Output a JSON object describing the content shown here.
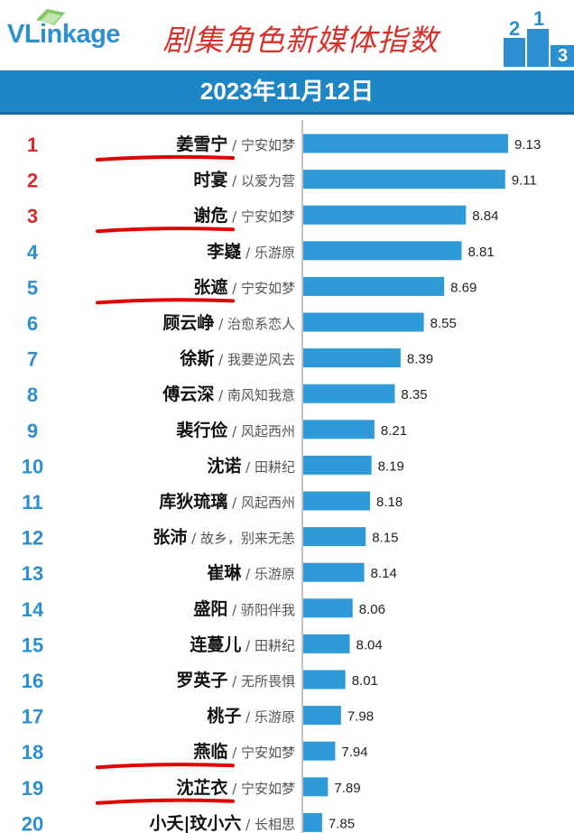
{
  "header": {
    "logo": "VLinkage",
    "title": "剧集角色新媒体指数",
    "podium_digits": [
      "2",
      "1",
      "3"
    ],
    "date": "2023年11月12日"
  },
  "colors": {
    "bar": "#2f9ad8",
    "rank_top3": "#d52b2b",
    "rank_rest": "#2b8fd0",
    "axis": "#9a9a9a",
    "highlight_underline": "#e00000"
  },
  "chart_data": {
    "type": "bar",
    "orientation": "horizontal",
    "ranks": [
      "1",
      "2",
      "3",
      "4",
      "5",
      "6",
      "7",
      "8",
      "9",
      "10",
      "11",
      "12",
      "13",
      "14",
      "15",
      "16",
      "17",
      "18",
      "19",
      "20"
    ],
    "names": [
      "姜雪宁",
      "时宴",
      "谢危",
      "李嶷",
      "张遮",
      "顾云峥",
      "徐斯",
      "傅云深",
      "裴行俭",
      "沈诺",
      "库狄琉璃",
      "张沛",
      "崔琳",
      "盛阳",
      "连蔓儿",
      "罗英子",
      "桃子",
      "燕临",
      "沈芷衣",
      "小夭|玟小六"
    ],
    "works": [
      "宁安如梦",
      "以爱为营",
      "宁安如梦",
      "乐游原",
      "宁安如梦",
      "治愈系恋人",
      "我要逆风去",
      "南风知我意",
      "风起西州",
      "田耕纪",
      "风起西州",
      "故乡，别来无恙",
      "乐游原",
      "骄阳伴我",
      "田耕纪",
      "无所畏惧",
      "乐游原",
      "宁安如梦",
      "宁安如梦",
      "长相思"
    ],
    "categories": [
      "姜雪宁 / 宁安如梦",
      "时宴 / 以爱为营",
      "谢危 / 宁安如梦",
      "李嶷 / 乐游原",
      "张遮 / 宁安如梦",
      "顾云峥 / 治愈系恋人",
      "徐斯 / 我要逆风去",
      "傅云深 / 南风知我意",
      "裴行俭 / 风起西州",
      "沈诺 / 田耕纪",
      "库狄琉璃 / 风起西州",
      "张沛 / 故乡，别来无恙",
      "崔琳 / 乐游原",
      "盛阳 / 骄阳伴我",
      "连蔓儿 / 田耕纪",
      "罗英子 / 无所畏惧",
      "桃子 / 乐游原",
      "燕临 / 宁安如梦",
      "沈芷衣 / 宁安如梦",
      "小夭|玟小六 / 长相思"
    ],
    "values": [
      9.13,
      9.11,
      8.84,
      8.81,
      8.69,
      8.55,
      8.39,
      8.35,
      8.21,
      8.19,
      8.18,
      8.15,
      8.14,
      8.06,
      8.04,
      8.01,
      7.98,
      7.94,
      7.89,
      7.85
    ],
    "value_labels": [
      "9.13",
      "9.11",
      "8.84",
      "8.81",
      "8.69",
      "8.55",
      "8.39",
      "8.35",
      "8.21",
      "8.19",
      "8.18",
      "8.15",
      "8.14",
      "8.06",
      "8.04",
      "8.01",
      "7.98",
      "7.94",
      "7.89",
      "7.85"
    ],
    "xlim": [
      7.72,
      9.13
    ],
    "grid": false,
    "highlighted_ranks": [
      1,
      3,
      5,
      18,
      19
    ]
  }
}
